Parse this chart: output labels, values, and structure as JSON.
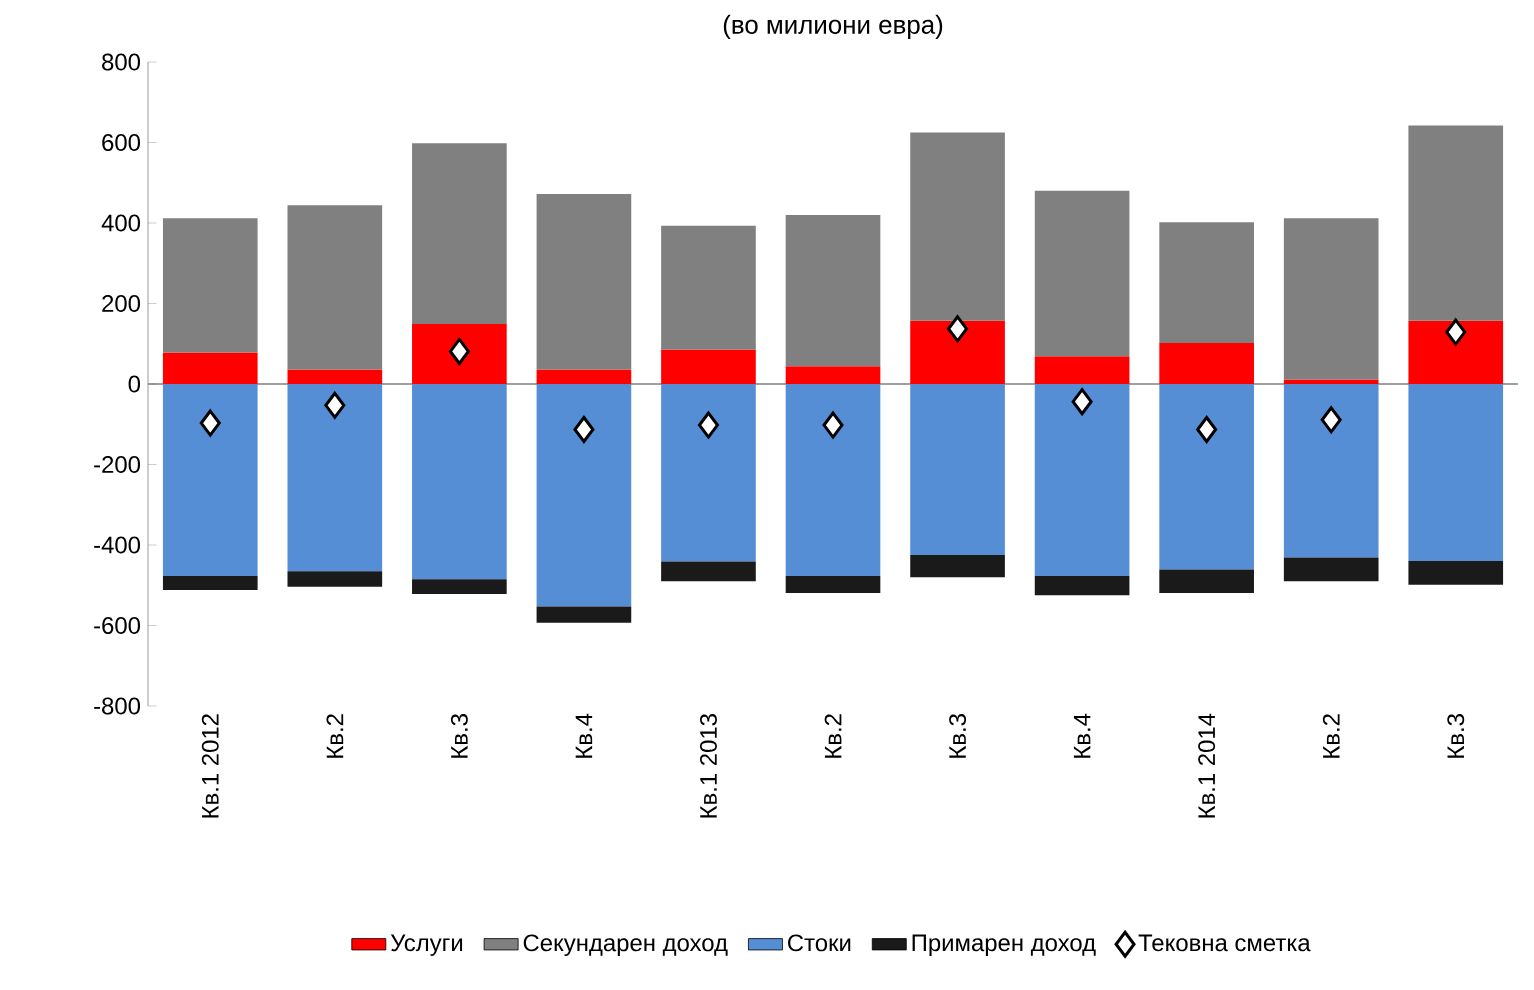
{
  "chart_data": {
    "type": "bar",
    "stacked": true,
    "title": "(во милиони евра)",
    "categories": [
      "Кв.1 2012",
      "Кв.2",
      "Кв.3",
      "Кв.4",
      "Кв.1 2013",
      "Кв.2",
      "Кв.3",
      "Кв.4",
      "Кв.1 2014",
      "Кв.2",
      "Кв.3"
    ],
    "series": [
      {
        "name": "Услуги",
        "color": "#ff0000",
        "values": [
          78,
          36,
          149,
          36,
          86,
          44,
          157,
          69,
          102,
          11,
          157
        ]
      },
      {
        "name": "Секундарен доход",
        "color": "#808080",
        "values": [
          334,
          408,
          449,
          436,
          307,
          376,
          468,
          411,
          300,
          401,
          485
        ]
      },
      {
        "name": "Стоки",
        "color": "#558ed5",
        "values": [
          -477,
          -465,
          -485,
          -553,
          -441,
          -477,
          -425,
          -477,
          -461,
          -431,
          -440
        ]
      },
      {
        "name": "Примарен доход",
        "color": "#1a1a1a",
        "values": [
          -35,
          -39,
          -37,
          -40,
          -49,
          -42,
          -55,
          -48,
          -58,
          -59,
          -59
        ]
      },
      {
        "name": "Тековна сметка",
        "type": "scatter",
        "color": "#ffffff",
        "marker": "diamond",
        "values": [
          -97,
          -53,
          81,
          -113,
          -102,
          -102,
          137,
          -44,
          -113,
          -89,
          129
        ]
      }
    ],
    "ylim": [
      -800,
      800
    ],
    "yticks": [
      -800,
      -600,
      -400,
      -200,
      0,
      200,
      400,
      600,
      800
    ],
    "legend": "bottom"
  }
}
